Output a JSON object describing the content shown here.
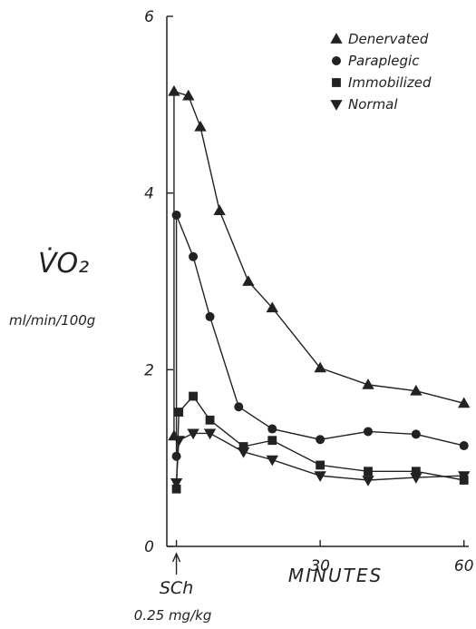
{
  "chart_data": {
    "type": "line",
    "title": "",
    "ylabel_main": "V̇O₂",
    "ylabel_units": "ml/min/100g",
    "xlabel": "MINUTES",
    "annotation": {
      "label": "SCh",
      "dose": "0.25 mg/kg",
      "x": 0
    },
    "xlim": [
      -2,
      61
    ],
    "ylim": [
      0,
      6
    ],
    "x_ticks": [
      0,
      30,
      60
    ],
    "x_tick_labels": [
      "",
      "30",
      "60"
    ],
    "y_ticks": [
      0,
      2,
      4,
      6
    ],
    "y_tick_labels": [
      "0",
      "2",
      "4",
      "6"
    ],
    "grid": false,
    "legend_position": "top-right",
    "color": "#222222",
    "series": [
      {
        "name": "Denervated",
        "marker": "triangle-up",
        "x": [
          -0.5,
          -0.5,
          2.5,
          5,
          9,
          15,
          20,
          30,
          40,
          50,
          60
        ],
        "y": [
          1.25,
          5.15,
          5.1,
          4.75,
          3.8,
          3.0,
          2.7,
          2.02,
          1.83,
          1.76,
          1.62
        ]
      },
      {
        "name": "Paraplegic",
        "marker": "circle",
        "x": [
          0,
          0,
          3.5,
          7,
          13,
          20,
          30,
          40,
          50,
          60
        ],
        "y": [
          1.02,
          3.75,
          3.28,
          2.6,
          1.58,
          1.33,
          1.21,
          1.3,
          1.27,
          1.14
        ]
      },
      {
        "name": "Immobilized",
        "marker": "square",
        "x": [
          0,
          0.5,
          3.5,
          7,
          14,
          20,
          30,
          40,
          50,
          60
        ],
        "y": [
          0.65,
          1.52,
          1.7,
          1.43,
          1.13,
          1.2,
          0.92,
          0.85,
          0.85,
          0.75
        ]
      },
      {
        "name": "Normal",
        "marker": "triangle-down",
        "x": [
          0,
          0.5,
          3.5,
          7,
          14,
          20,
          30,
          40,
          50,
          60
        ],
        "y": [
          0.72,
          1.2,
          1.28,
          1.28,
          1.07,
          0.98,
          0.8,
          0.75,
          0.78,
          0.8
        ]
      }
    ]
  }
}
